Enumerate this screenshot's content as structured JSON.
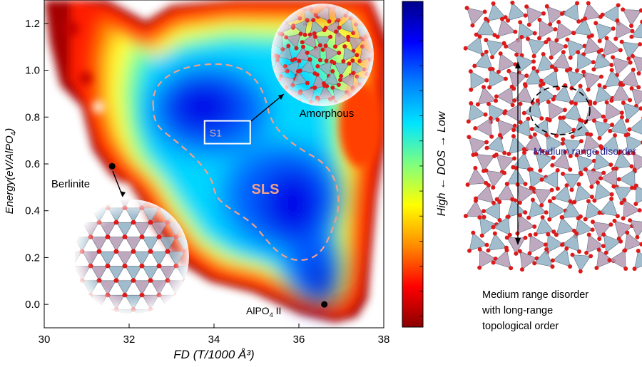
{
  "chart_data": {
    "type": "heatmap",
    "xlabel_main": "FD",
    "xlabel_unit": "(T/1000 Å³)",
    "ylabel_main": "Energy",
    "ylabel_unit": "(eV/AlPO",
    "ylabel_sub": "4",
    "ylabel_close": ")",
    "xlim": [
      30,
      38
    ],
    "ylim": [
      -0.1,
      1.3
    ],
    "x_ticks": [
      "30",
      "32",
      "34",
      "36",
      "38"
    ],
    "y_ticks": [
      "0.0",
      "0.2",
      "0.4",
      "0.6",
      "0.8",
      "1.0",
      "1.2"
    ],
    "colorbar": {
      "label": "High ← DOS → Low",
      "colors": [
        "#8b0000",
        "#ff0000",
        "#ff8c00",
        "#ffff00",
        "#7fff7f",
        "#00e5ff",
        "#0080ff",
        "#0000ff",
        "#00008b"
      ]
    },
    "points": [
      {
        "name": "Berlinite",
        "x": 31.6,
        "y": 0.59
      },
      {
        "name": "AlPO",
        "name_sub": "4",
        "name_suffix": " II",
        "x": 36.6,
        "y": 0.0
      }
    ],
    "annotations": {
      "s1_box": "S1",
      "sls": "SLS",
      "amorphous": "Amorphous",
      "s1_box_data": {
        "x0": 34.45,
        "x1": 35.5,
        "y0": 0.69,
        "y1": 0.79
      }
    },
    "grid": false
  },
  "right_panel": {
    "label": "Medium range disorder",
    "caption": [
      "Medium range disorder",
      "with long-range",
      "topological order"
    ]
  },
  "colors": {
    "amorphous_crystal": "#7f9fb4",
    "tetra_blue": "#8fb0c4",
    "tetra_purple": "#b49ab4",
    "oxygen": "#dd1a1a",
    "sls_outline": "#f0a08c",
    "text_navy": "#1c1c8c"
  }
}
